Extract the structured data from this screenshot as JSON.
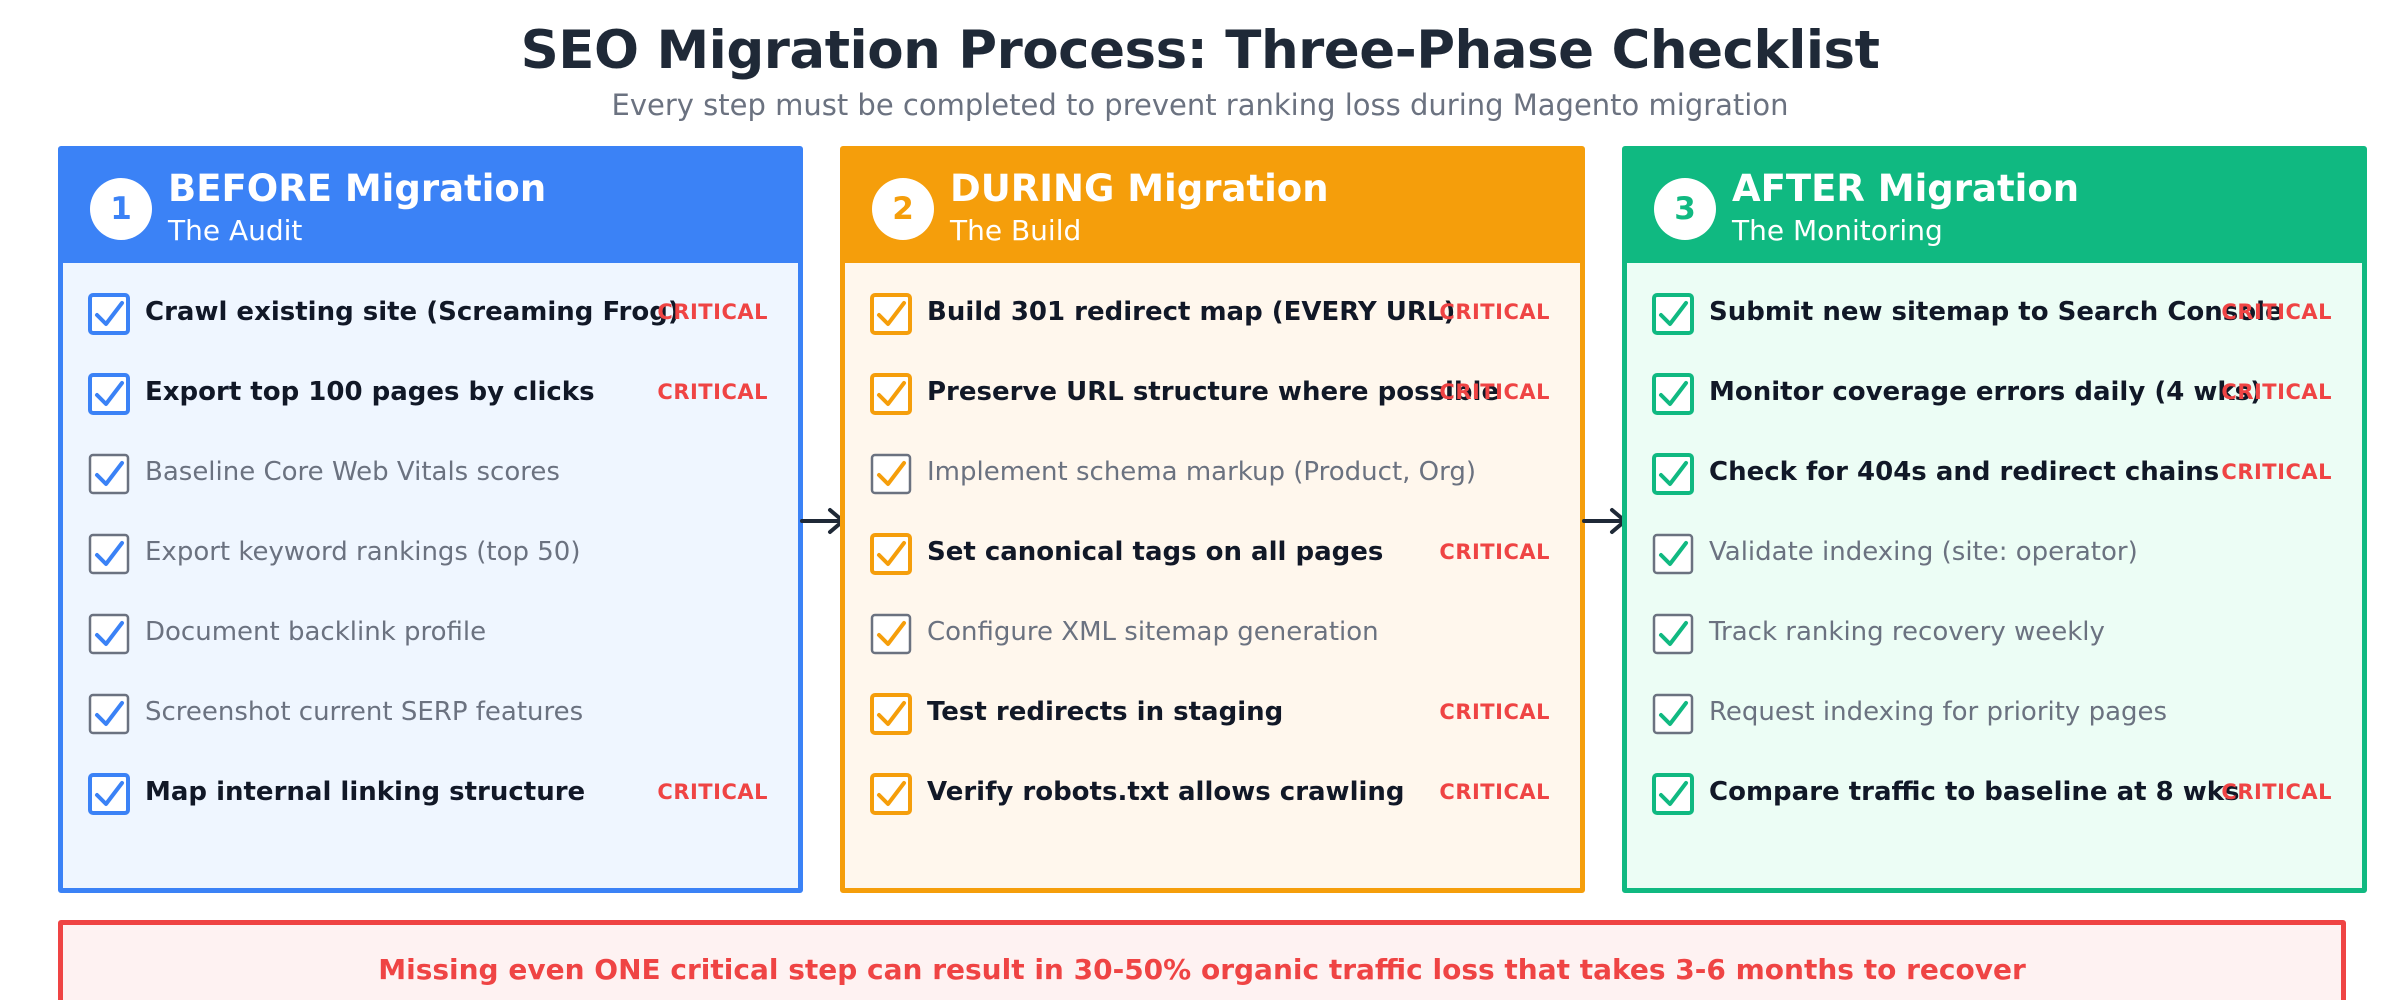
{
  "title": "SEO Migration Process: Three-Phase Checklist",
  "subtitle": "Every step must be completed to prevent ranking loss during Magento migration",
  "critical_label": "CRITICAL",
  "colors": {
    "before": "#3b82f6",
    "during": "#f59e0b",
    "after": "#10b981",
    "critical": "#ef4444",
    "muted_checkbox": "#6b7280"
  },
  "phases": [
    {
      "number": "1",
      "title": "BEFORE Migration",
      "subtitle": "The Audit",
      "items": [
        {
          "label": "Crawl existing site (Screaming Frog)",
          "critical": true
        },
        {
          "label": "Export top 100 pages by clicks",
          "critical": true
        },
        {
          "label": "Baseline Core Web Vitals scores",
          "critical": false
        },
        {
          "label": "Export keyword rankings (top 50)",
          "critical": false
        },
        {
          "label": "Document backlink profile",
          "critical": false
        },
        {
          "label": "Screenshot current SERP features",
          "critical": false
        },
        {
          "label": "Map internal linking structure",
          "critical": true
        }
      ]
    },
    {
      "number": "2",
      "title": "DURING Migration",
      "subtitle": "The Build",
      "items": [
        {
          "label": "Build 301 redirect map (EVERY URL)",
          "critical": true
        },
        {
          "label": "Preserve URL structure where possible",
          "critical": true
        },
        {
          "label": "Implement schema markup (Product, Org)",
          "critical": false
        },
        {
          "label": "Set canonical tags on all pages",
          "critical": true
        },
        {
          "label": "Configure XML sitemap generation",
          "critical": false
        },
        {
          "label": "Test redirects in staging",
          "critical": true
        },
        {
          "label": "Verify robots.txt allows crawling",
          "critical": true
        }
      ]
    },
    {
      "number": "3",
      "title": "AFTER Migration",
      "subtitle": "The Monitoring",
      "items": [
        {
          "label": "Submit new sitemap to Search Console",
          "critical": true
        },
        {
          "label": "Monitor coverage errors daily (4 wks)",
          "critical": true
        },
        {
          "label": "Check for 404s and redirect chains",
          "critical": true
        },
        {
          "label": "Validate indexing (site: operator)",
          "critical": false
        },
        {
          "label": "Track ranking recovery weekly",
          "critical": false
        },
        {
          "label": "Request indexing for priority pages",
          "critical": false
        },
        {
          "label": "Compare traffic to baseline at 8 wks",
          "critical": true
        }
      ]
    }
  ],
  "warning": "Missing even ONE critical step can result in 30-50% organic traffic loss that takes 3-6 months to recover"
}
